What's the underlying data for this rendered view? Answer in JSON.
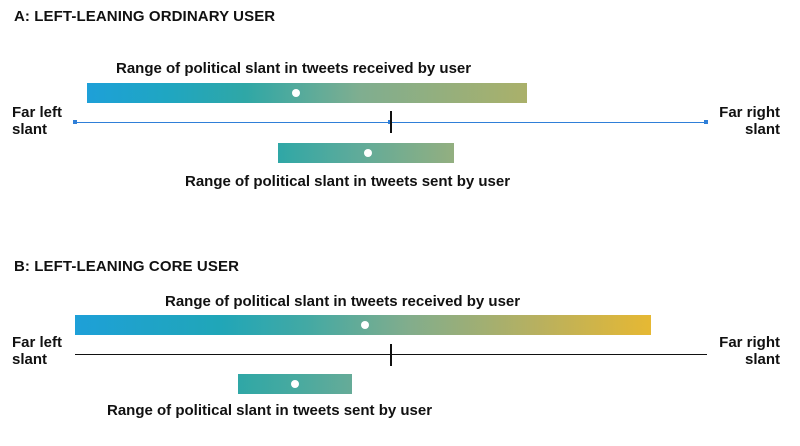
{
  "panel_a": {
    "title": "A: LEFT-LEANING ORDINARY USER",
    "received_caption": "Range of political slant in tweets received by user",
    "sent_caption": "Range of political slant in tweets sent by user",
    "far_left": [
      "Far left",
      "slant"
    ],
    "far_right": [
      "Far right",
      "slant"
    ]
  },
  "panel_b": {
    "title": "B: LEFT-LEANING CORE USER",
    "received_caption": "Range of political slant in tweets received by user",
    "sent_caption": "Range of political slant in tweets sent by user",
    "far_left": [
      "Far left",
      "slant"
    ],
    "far_right": [
      "Far right",
      "slant"
    ]
  },
  "colors": {
    "far_left": "#1ea0d8",
    "left": "#2fa7a6",
    "center": "#7fae90",
    "right": "#aab06a",
    "far_right": "#e6b833",
    "axis": "#111111",
    "selection_handles": "#2f7fd8"
  }
}
